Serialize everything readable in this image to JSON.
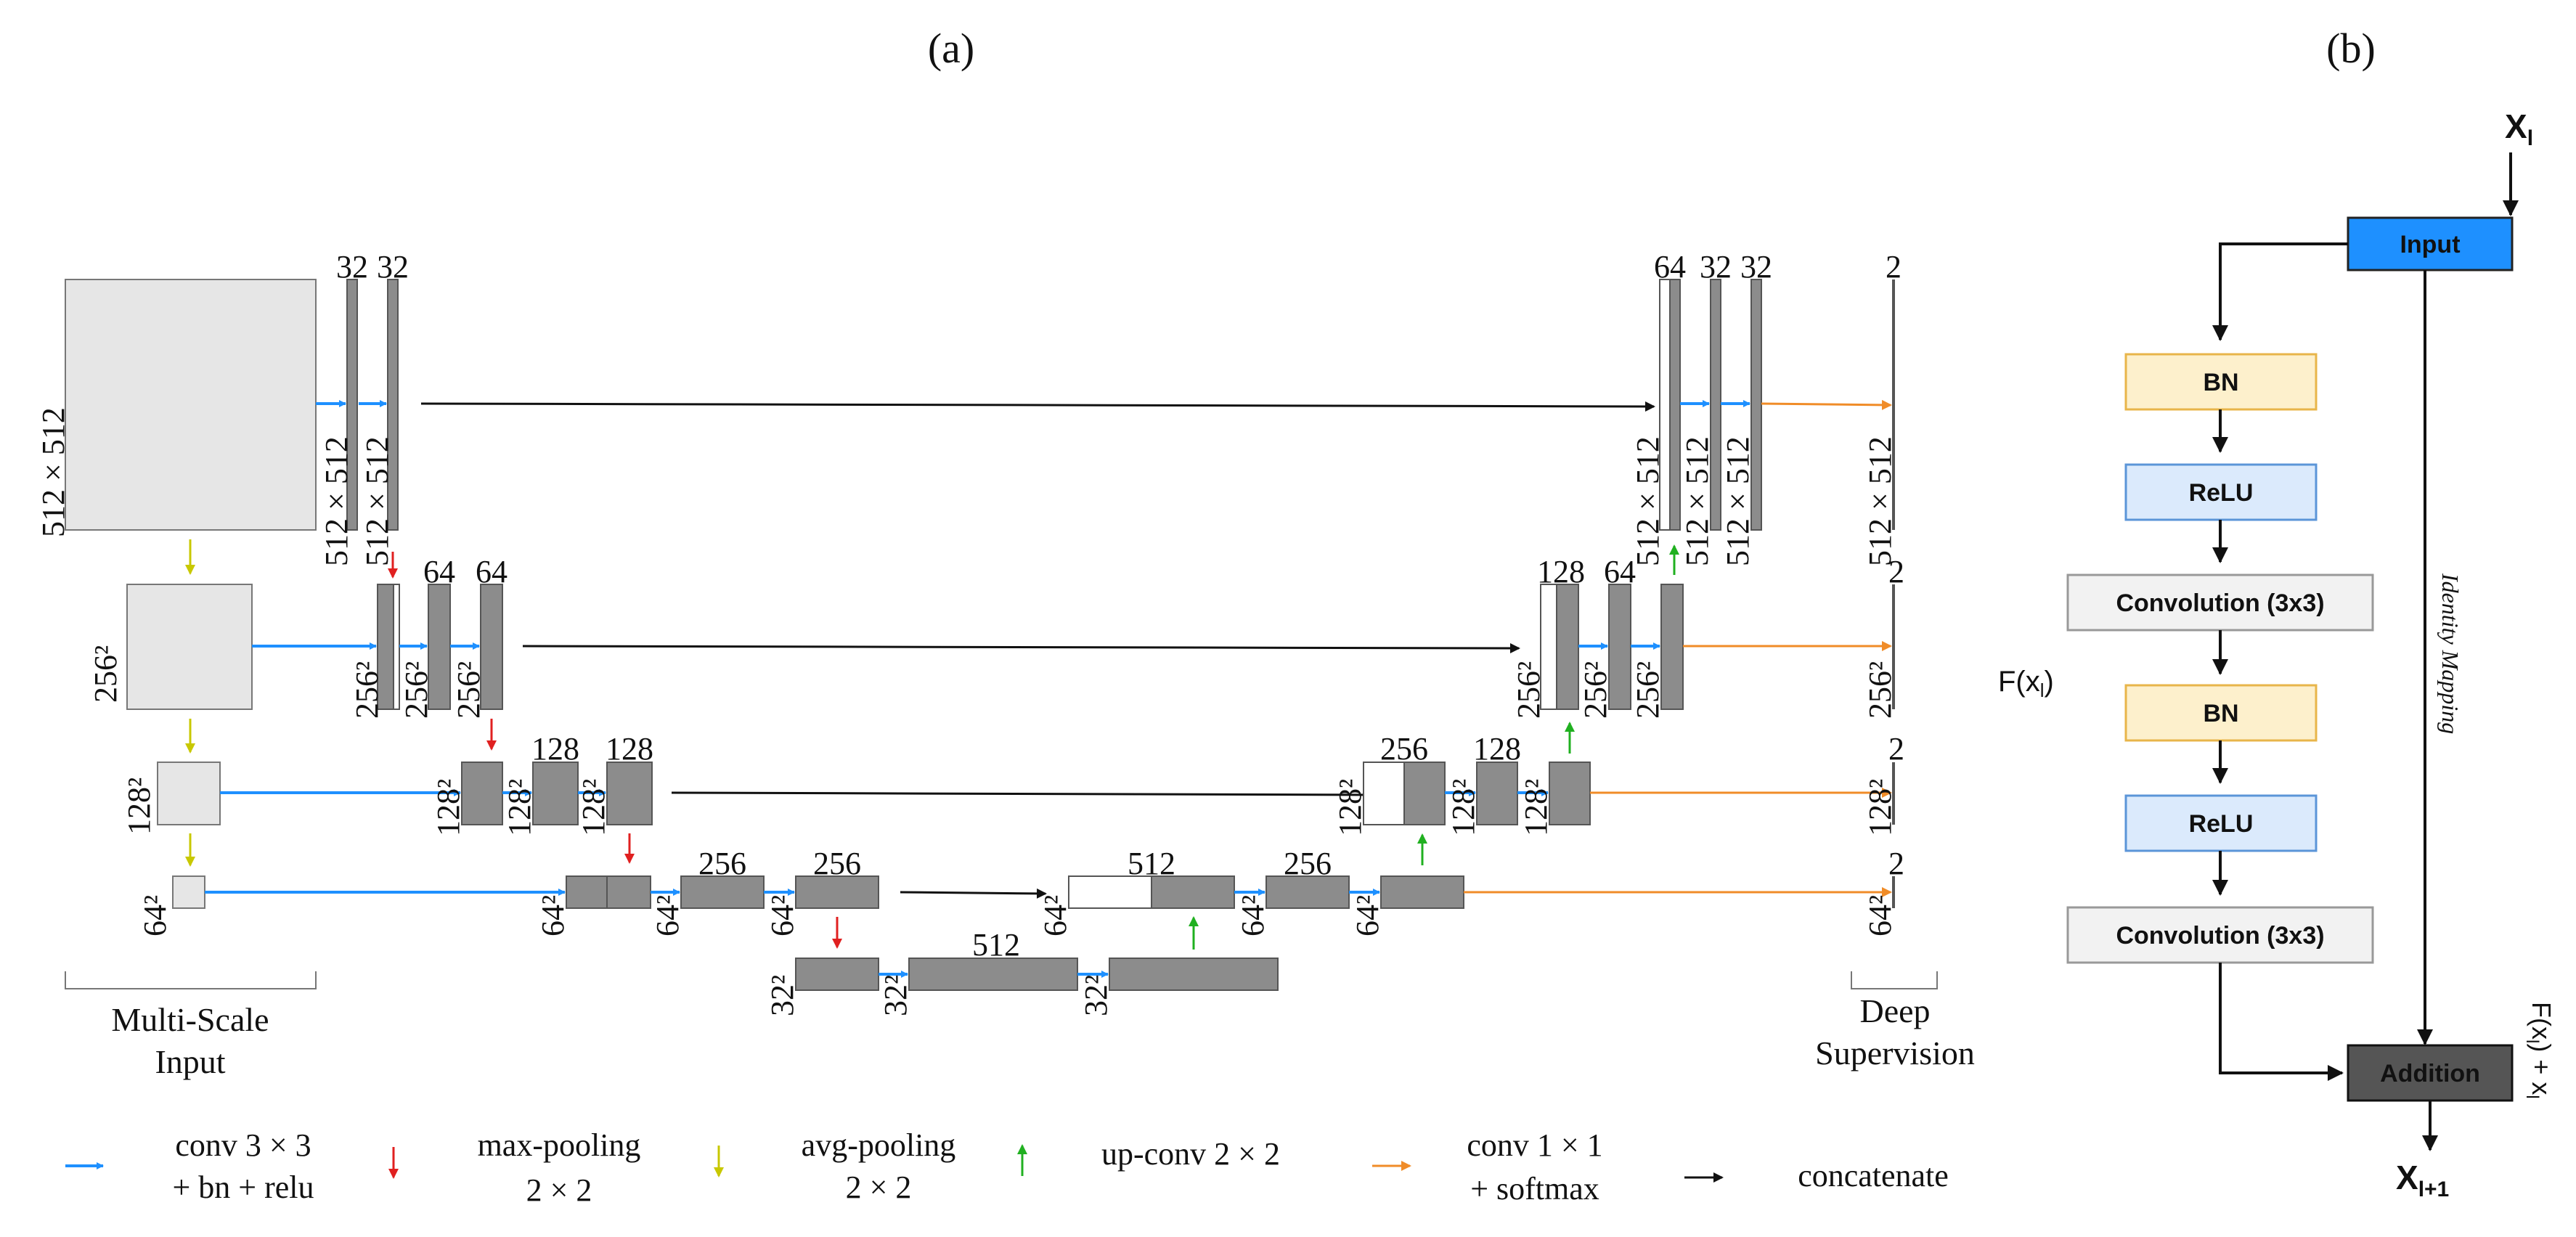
{
  "panel_a": {
    "label": "(a)",
    "input_label_line1": "Multi-Scale",
    "input_label_line2": "Input",
    "output_label_line1": "Deep",
    "output_label_line2": "Supervision",
    "dims": {
      "in0": "512 × 512",
      "in1": "256²",
      "in2": "128²",
      "in3": "64²",
      "e0a": "512 × 512",
      "e0b": "512 × 512",
      "e1a": "256²",
      "e1b": "256²",
      "e1c": "256²",
      "e2a": "128²",
      "e2b": "128²",
      "e2c": "128²",
      "e3a": "64²",
      "e3b": "64²",
      "e3c": "64²",
      "bt_a": "32²",
      "bt_b": "32²",
      "bt_c": "32²",
      "d3a": "64²",
      "d3b": "64²",
      "d3c": "64²",
      "d2a": "128²",
      "d2b": "128²",
      "d2c": "128²",
      "d1a": "256²",
      "d1b": "256²",
      "d1c": "256²",
      "d0a": "512 × 512",
      "d0b": "512 × 512",
      "d0c": "512 × 512",
      "o0": "512 × 512",
      "o1": "256²",
      "o2": "128²",
      "o3": "64²"
    },
    "channels": {
      "e0a": "32",
      "e0b": "32",
      "e1b": "64",
      "e1c": "64",
      "e2b": "128",
      "e2c": "128",
      "e3b": "256",
      "e3c": "256",
      "bt": "512",
      "d3a": "512",
      "d3b": "256",
      "d2a": "256",
      "d2b": "128",
      "d1a": "128",
      "d1b": "64",
      "d0a": "64",
      "d0b": "32",
      "d0c": "32",
      "o0": "2",
      "o1": "2",
      "o2": "2",
      "o3": "2"
    },
    "legend": [
      {
        "line1": "conv  3 × 3",
        "line2": "+ bn + relu",
        "color": "#1e90ff"
      },
      {
        "line1": "max-pooling",
        "line2": "2 × 2",
        "color": "#e02020"
      },
      {
        "line1": "avg-pooling",
        "line2": "2 × 2",
        "color": "#c8c800"
      },
      {
        "line1": "up-conv  2 × 2",
        "line2": "",
        "color": "#20b020"
      },
      {
        "line1": "conv  1 × 1",
        "line2": "+ softmax",
        "color": "#f08c28"
      },
      {
        "line1": "concatenate",
        "line2": "",
        "color": "#111111"
      }
    ]
  },
  "panel_b": {
    "label": "(b)",
    "x_in": "X",
    "x_in_sub": "l",
    "x_out": "X",
    "x_out_sub": "l+1",
    "input_box": "Input",
    "bn1": "BN",
    "relu1": "ReLU",
    "conv1": "Convolution (3x3)",
    "fx": "F(x",
    "fx_sub": "l",
    "fx_close": ")",
    "bn2": "BN",
    "relu2": "ReLU",
    "conv2": "Convolution (3x3)",
    "addition": "Addition",
    "identity": "Identity Mapping",
    "sum_label": "F(x",
    "sum_label_sub": "l",
    "sum_label_rest": ") + x",
    "sum_label_sub2": "l"
  },
  "colors": {
    "conv": "#1e90ff",
    "maxpool": "#e02020",
    "avgpool": "#c8c800",
    "upconv": "#20b020",
    "conv1x1": "#f08c28",
    "concat": "#111111",
    "input_box": "#1e90ff",
    "bn_box": "#fdf0cc",
    "relu_box": "#dbeafc",
    "conv_box": "#f2f2f2",
    "addition_box": "#555555"
  }
}
